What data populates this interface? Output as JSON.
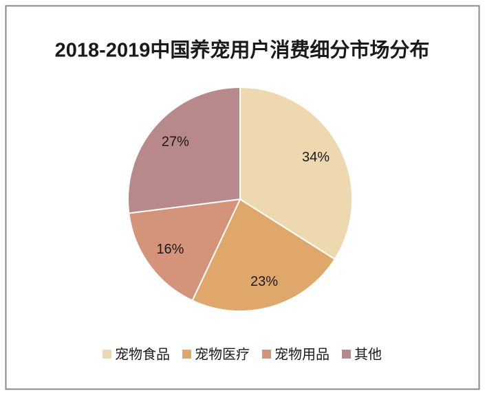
{
  "chart_data": {
    "type": "pie",
    "title": "2018-2019中国养宠用户消费细分市场分布",
    "categories": [
      "宠物食品",
      "宠物医疗",
      "宠物用品",
      "其他"
    ],
    "values": [
      34,
      23,
      16,
      27
    ],
    "value_labels": [
      "34%",
      "23%",
      "16%",
      "27%"
    ],
    "colors": [
      "#edd8b0",
      "#dfa86a",
      "#d4947a",
      "#b8898b"
    ],
    "legend": "bottom"
  }
}
